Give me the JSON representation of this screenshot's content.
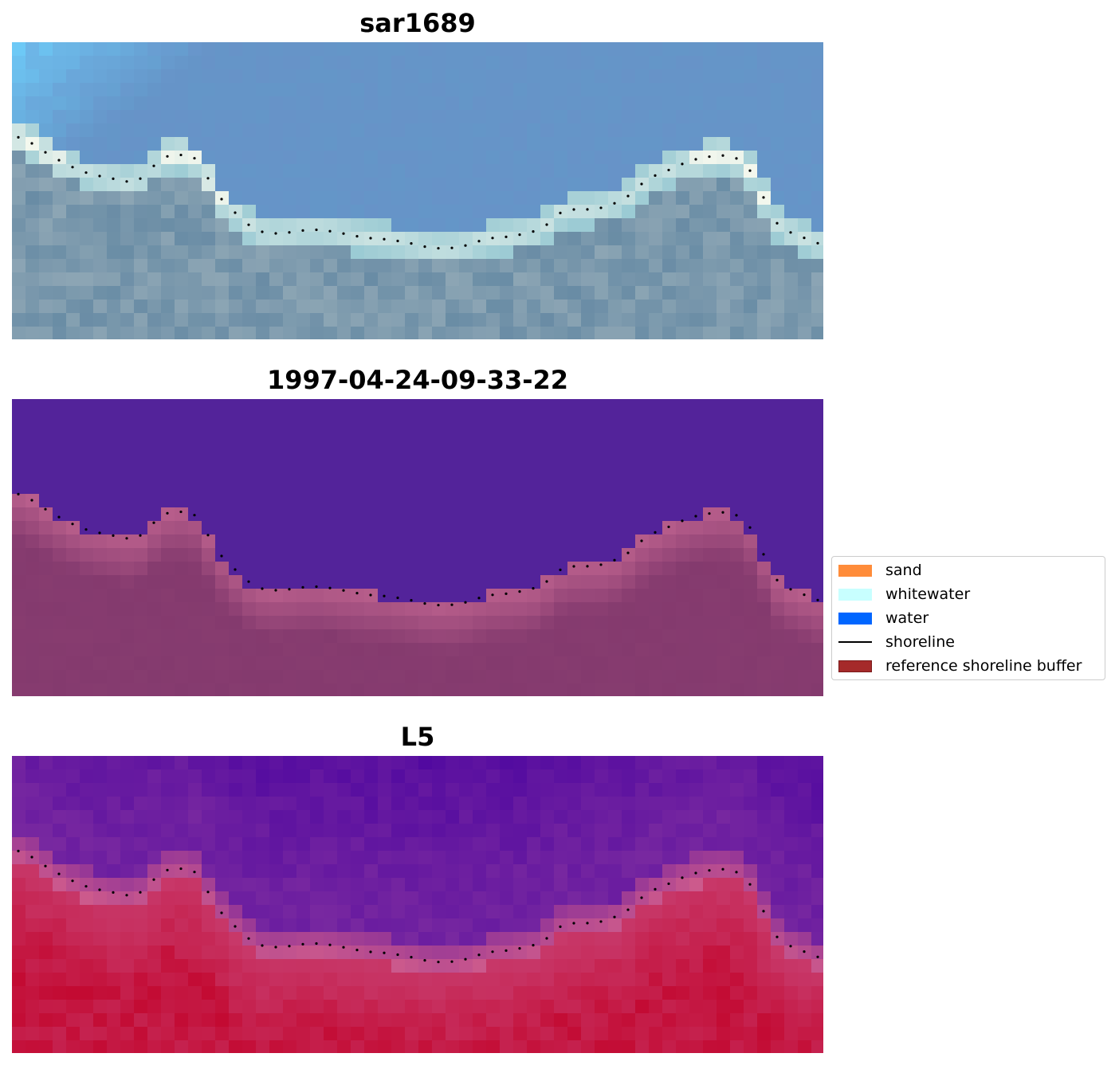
{
  "panels": [
    {
      "title": "sar1689",
      "style": "rgb"
    },
    {
      "title": "1997-04-24-09-33-22",
      "style": "classified"
    },
    {
      "title": "L5",
      "style": "index"
    }
  ],
  "legend": {
    "items": [
      {
        "label": "sand",
        "color": "#ff8c3a",
        "kind": "patch"
      },
      {
        "label": "whitewater",
        "color": "#c8ffff",
        "kind": "patch"
      },
      {
        "label": "water",
        "color": "#0066ff",
        "kind": "patch"
      },
      {
        "label": "shoreline",
        "color": "#000000",
        "kind": "line"
      },
      {
        "label": "reference shoreline buffer",
        "color": "#a52a2a",
        "kind": "patch"
      }
    ]
  },
  "colors": {
    "water_class": "#53239a",
    "land_class": "#843a6e",
    "shoreline_dots": "#000000"
  }
}
